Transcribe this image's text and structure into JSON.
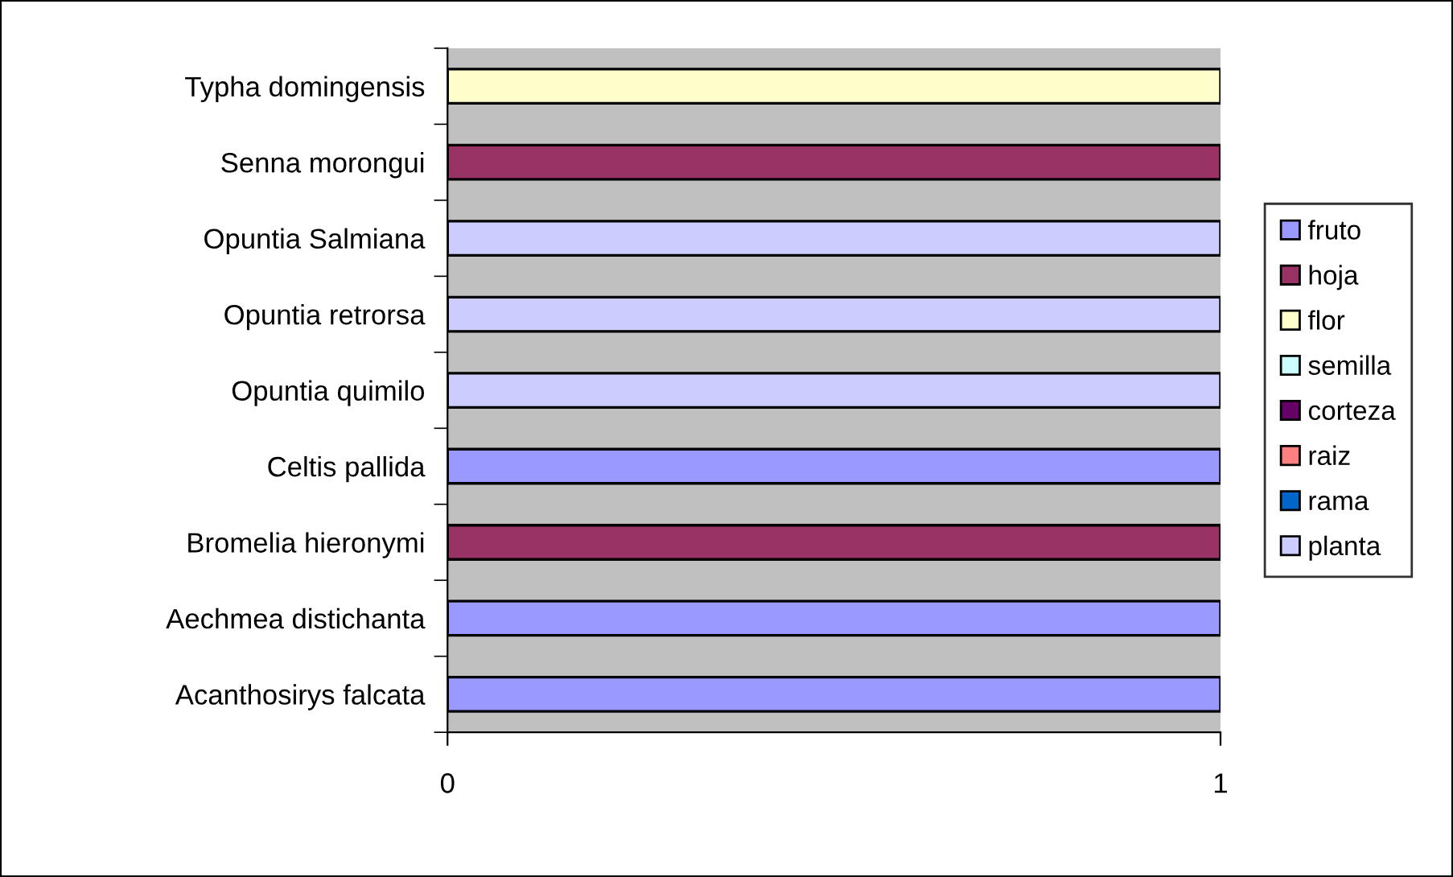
{
  "chart_data": {
    "type": "bar",
    "orientation": "horizontal",
    "categories": [
      "Typha domingensis",
      "Senna morongui",
      "Opuntia Salmiana",
      "Opuntia retrorsa",
      "Opuntia quimilo",
      "Celtis pallida",
      "Bromelia hieronymi",
      "Aechmea distichanta",
      "Acanthosirys falcata"
    ],
    "series": [
      {
        "name": "fruto",
        "color": "#9999ff",
        "values": [
          null,
          null,
          null,
          null,
          null,
          1,
          null,
          1,
          1
        ]
      },
      {
        "name": "hoja",
        "color": "#993366",
        "values": [
          null,
          1,
          null,
          null,
          null,
          null,
          1,
          null,
          null
        ]
      },
      {
        "name": "flor",
        "color": "#ffffcc",
        "values": [
          1,
          null,
          null,
          null,
          null,
          null,
          null,
          null,
          null
        ]
      },
      {
        "name": "semilla",
        "color": "#ccffff",
        "values": [
          null,
          null,
          null,
          null,
          null,
          null,
          null,
          null,
          null
        ]
      },
      {
        "name": "corteza",
        "color": "#660066",
        "values": [
          null,
          null,
          null,
          null,
          null,
          null,
          null,
          null,
          null
        ]
      },
      {
        "name": "raiz",
        "color": "#ff8080",
        "values": [
          null,
          null,
          null,
          null,
          null,
          null,
          null,
          null,
          null
        ]
      },
      {
        "name": "rama",
        "color": "#0066cc",
        "values": [
          null,
          null,
          null,
          null,
          null,
          null,
          null,
          null,
          null
        ]
      },
      {
        "name": "planta",
        "color": "#ccccff",
        "values": [
          null,
          null,
          1,
          1,
          1,
          null,
          null,
          null,
          null
        ]
      }
    ],
    "xlim": [
      0,
      1
    ],
    "xticks": [
      0,
      1
    ],
    "grid": false,
    "legend": "right"
  }
}
